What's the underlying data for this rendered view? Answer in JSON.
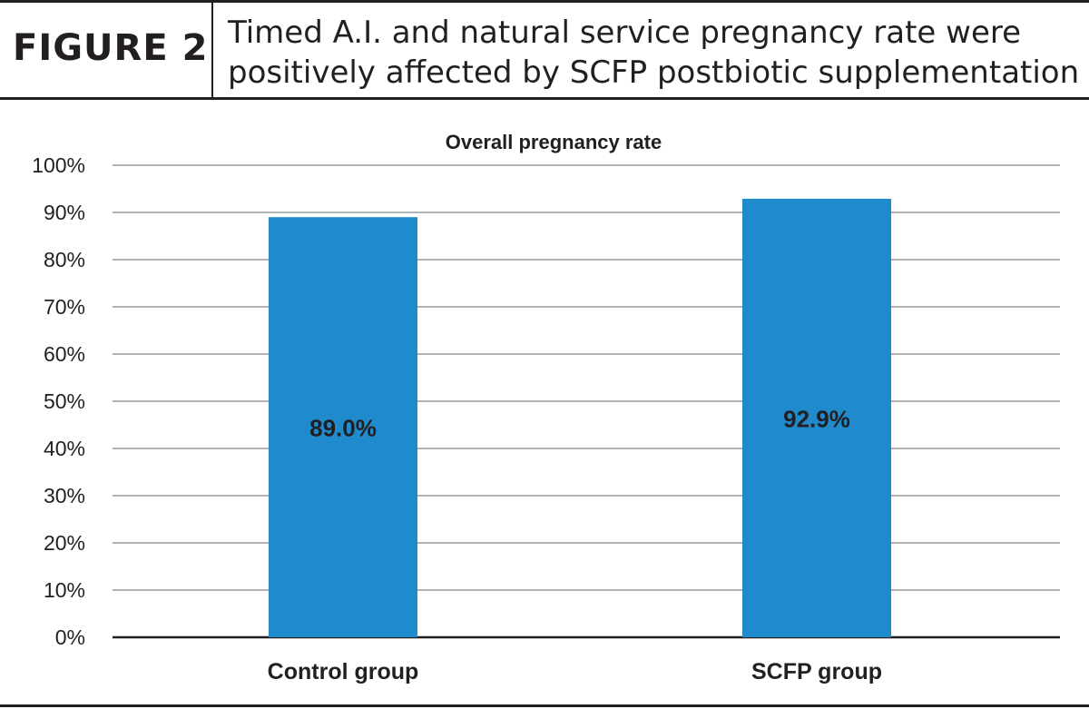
{
  "figure": {
    "label": "FIGURE 2",
    "title_line1": "Timed A.I. and natural service pregnancy rate were",
    "title_line2": "positively affected by SCFP postbiotic supplementation"
  },
  "colors": {
    "bar": "#1f8bcd",
    "grid": "#b3b3b3",
    "text": "#231f20"
  },
  "chart_data": {
    "type": "bar",
    "title": "Overall pregnancy rate",
    "categories": [
      "Control group",
      "SCFP group"
    ],
    "values": [
      89.0,
      92.9
    ],
    "data_labels": [
      "89.0%",
      "92.9%"
    ],
    "xlabel": "",
    "ylabel": "",
    "ylim": [
      0,
      100
    ],
    "yticks": [
      0,
      10,
      20,
      30,
      40,
      50,
      60,
      70,
      80,
      90,
      100
    ],
    "ytick_labels": [
      "0%",
      "10%",
      "20%",
      "30%",
      "40%",
      "50%",
      "60%",
      "70%",
      "80%",
      "90%",
      "100%"
    ],
    "grid": true,
    "legend": "none"
  }
}
